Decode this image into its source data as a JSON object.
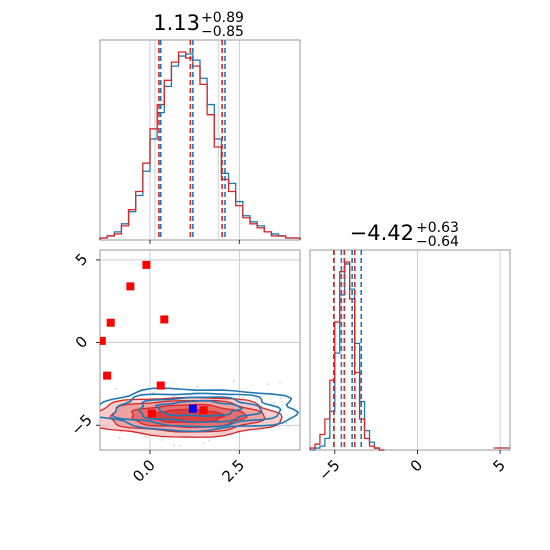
{
  "colors": {
    "blue": "#1f77b4",
    "red": "#d62728",
    "marker_red": "#ff0000",
    "marker_blue": "#0000ff",
    "axis": "#808080",
    "grid": "#b0b0b0"
  },
  "chart_data": {
    "type": "corner",
    "parameters": [
      {
        "title_value": "1.13",
        "title_upper": "+0.89",
        "title_lower": "−0.85",
        "range": [
          -1.4,
          4.2
        ],
        "ticks": [
          0.0,
          2.5
        ],
        "tick_labels": [
          "0.0",
          "2.5"
        ],
        "quantiles_red": [
          0.25,
          1.13,
          2.02
        ],
        "quantiles_blue": [
          0.3,
          1.2,
          2.1
        ]
      },
      {
        "title_value": "−4.42",
        "title_upper": "+0.63",
        "title_lower": "−0.64",
        "range": [
          -6.5,
          5.6
        ],
        "ticks": [
          -5,
          0,
          5
        ],
        "tick_labels": [
          "−5",
          "0",
          "5"
        ],
        "quantiles_red": [
          -5.06,
          -4.42,
          -3.79
        ],
        "quantiles_blue": [
          -4.6,
          -3.95,
          -3.4
        ]
      }
    ],
    "histogram_1d_param1": {
      "bin_edges": [
        -1.4,
        -1.2,
        -1.0,
        -0.8,
        -0.6,
        -0.4,
        -0.2,
        0.0,
        0.2,
        0.4,
        0.6,
        0.8,
        1.0,
        1.2,
        1.4,
        1.6,
        1.8,
        2.0,
        2.2,
        2.4,
        2.6,
        2.8,
        3.0,
        3.2,
        3.4,
        3.6,
        3.8,
        4.0,
        4.2
      ],
      "blue": [
        1,
        2,
        4,
        8,
        14,
        22,
        34,
        50,
        63,
        76,
        86,
        91,
        92,
        89,
        80,
        67,
        50,
        33,
        28,
        19,
        12,
        9,
        7,
        4,
        3,
        2,
        1,
        1
      ],
      "red": [
        1,
        2,
        3,
        7,
        15,
        24,
        38,
        55,
        67,
        79,
        88,
        93,
        90,
        86,
        77,
        62,
        46,
        30,
        24,
        17,
        11,
        8,
        6,
        4,
        2,
        2,
        1,
        1
      ]
    },
    "histogram_1d_param2": {
      "bin_edges": [
        -6.5,
        -6.2,
        -5.9,
        -5.6,
        -5.3,
        -5.0,
        -4.7,
        -4.4,
        -4.1,
        -3.8,
        -3.5,
        -3.2,
        -2.9,
        -2.6,
        -2.3,
        -2.0
      ],
      "blue": [
        0,
        1,
        2,
        6,
        20,
        50,
        80,
        96,
        83,
        55,
        25,
        10,
        4,
        1,
        0
      ],
      "red": [
        1,
        3,
        8,
        16,
        36,
        66,
        92,
        97,
        78,
        40,
        16,
        6,
        2,
        1,
        0
      ]
    },
    "scatter_markers": {
      "red": [
        {
          "x": -0.1,
          "y": 4.7
        },
        {
          "x": -0.55,
          "y": 3.4
        },
        {
          "x": 0.4,
          "y": 1.4
        },
        {
          "x": -1.1,
          "y": 1.2
        },
        {
          "x": -1.35,
          "y": 0.1
        },
        {
          "x": -1.2,
          "y": -2.0
        },
        {
          "x": 0.3,
          "y": -2.6
        },
        {
          "x": 0.05,
          "y": -4.3
        },
        {
          "x": 1.5,
          "y": -4.1
        }
      ],
      "blue": [
        {
          "x": 1.2,
          "y": -4.0
        }
      ]
    },
    "contours_2d": {
      "blue": [
        {
          "cx": 1.35,
          "cy": -4.0,
          "rx": 1.15,
          "ry": 0.45
        },
        {
          "cx": 1.35,
          "cy": -4.05,
          "rx": 1.7,
          "ry": 0.75
        },
        {
          "cx": 1.3,
          "cy": -4.05,
          "rx": 2.3,
          "ry": 1.0
        },
        {
          "cx": 1.3,
          "cy": -4.05,
          "rx": 2.85,
          "ry": 1.25
        }
      ],
      "red": [
        {
          "cx": 1.05,
          "cy": -4.45,
          "rx": 1.0,
          "ry": 0.4
        },
        {
          "cx": 1.05,
          "cy": -4.45,
          "rx": 1.6,
          "ry": 0.68
        },
        {
          "cx": 1.0,
          "cy": -4.45,
          "rx": 2.15,
          "ry": 0.95
        },
        {
          "cx": 1.0,
          "cy": -4.5,
          "rx": 2.65,
          "ry": 1.2
        }
      ]
    },
    "grid": true,
    "legend": "none"
  }
}
